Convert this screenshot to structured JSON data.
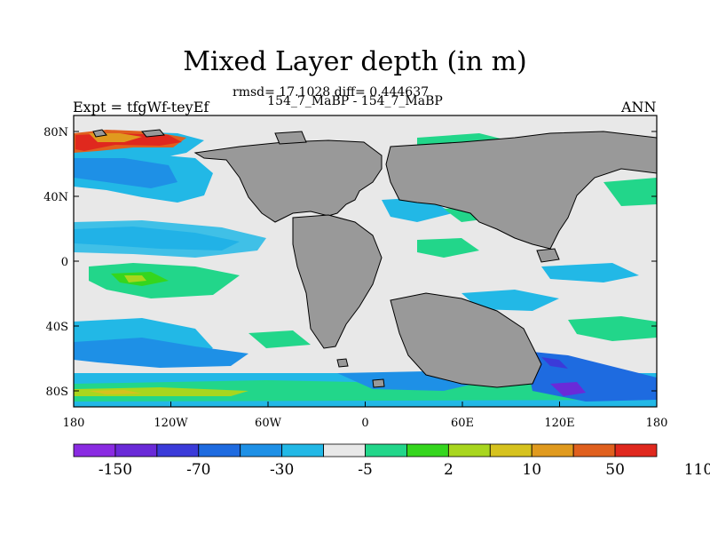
{
  "title": "Mixed Layer depth (in m)",
  "stats": "rmsd= 17.1028 diff= 0.444637",
  "subtitle": "154_7_MaBP - 154_7_MaBP",
  "left_label": "Expt = tfgWf-teyEf",
  "right_label": "ANN",
  "lat_labels": [
    "80N",
    "40N",
    "0",
    "40S",
    "80S"
  ],
  "lon_labels": [
    "180",
    "120W",
    "60W",
    "0",
    "60E",
    "120E",
    "180"
  ],
  "colorbar": {
    "colors": [
      "#8a2be2",
      "#6a2ad8",
      "#3b3bd9",
      "#1e6be0",
      "#1e90e6",
      "#22b8e6",
      "#e8e8e8",
      "#22d68a",
      "#35d61e",
      "#a8d61e",
      "#d6c21e",
      "#e09a1e",
      "#e0601e",
      "#e0281e"
    ],
    "labels": [
      "-150",
      "-70",
      "-30",
      "-5",
      "2",
      "10",
      "50",
      "110"
    ]
  },
  "colors": {
    "land": "#999999",
    "ocean_neutral": "#e8e8e8"
  }
}
